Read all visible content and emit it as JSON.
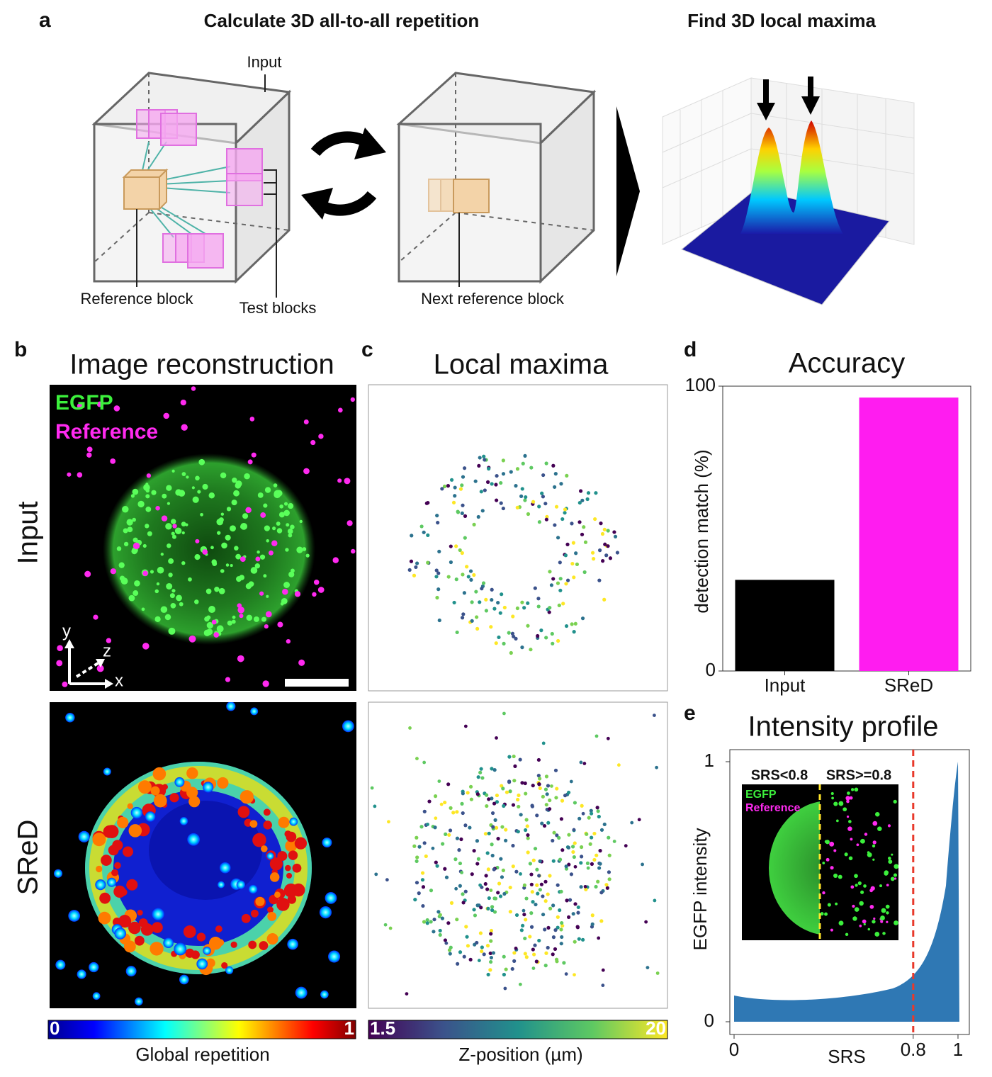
{
  "panel_a": {
    "letter": "a",
    "title_left": "Calculate 3D all-to-all repetition",
    "title_right": "Find 3D local maxima",
    "labels": {
      "input": "Input",
      "reference_block": "Reference block",
      "test_blocks": "Test blocks",
      "next_reference_block": "Next reference block"
    }
  },
  "panel_b": {
    "letter": "b",
    "title": "Image reconstruction",
    "row_labels": [
      "Input",
      "SReD"
    ],
    "legend": [
      "EGFP",
      "Reference"
    ],
    "axis_letters": [
      "y",
      "z",
      "x"
    ],
    "colorbar": {
      "label": "Global repetition",
      "range": [
        0,
        1
      ]
    }
  },
  "panel_c": {
    "letter": "c",
    "title": "Local maxima",
    "colorbar": {
      "label": "Z-position (µm)",
      "range": [
        1.5,
        20
      ]
    }
  },
  "chart_data": [
    {
      "type": "bar",
      "panel": "d",
      "title": "Accuracy",
      "ylabel": "detection match (%)",
      "categories": [
        "Input",
        "SReD"
      ],
      "values": [
        32,
        96
      ],
      "colors": [
        "#000000",
        "#ff1cf0"
      ],
      "ylim": [
        0,
        100
      ],
      "yticks": [
        0,
        100
      ]
    },
    {
      "type": "scatter",
      "panel": "e",
      "title": "Intensity profile",
      "xlabel": "SRS",
      "ylabel": "EGFP intensity",
      "xlim": [
        0,
        1
      ],
      "ylim": [
        0,
        1
      ],
      "xticks": [
        0,
        0.8,
        1
      ],
      "yticks": [
        0,
        1
      ],
      "threshold": 0.8,
      "color": "#2f78b4",
      "threshold_color": "#e8392b",
      "inset": {
        "left_label": "SRS<0.8",
        "right_label": "SRS>=0.8",
        "legend": [
          "EGFP",
          "Reference"
        ]
      }
    }
  ]
}
